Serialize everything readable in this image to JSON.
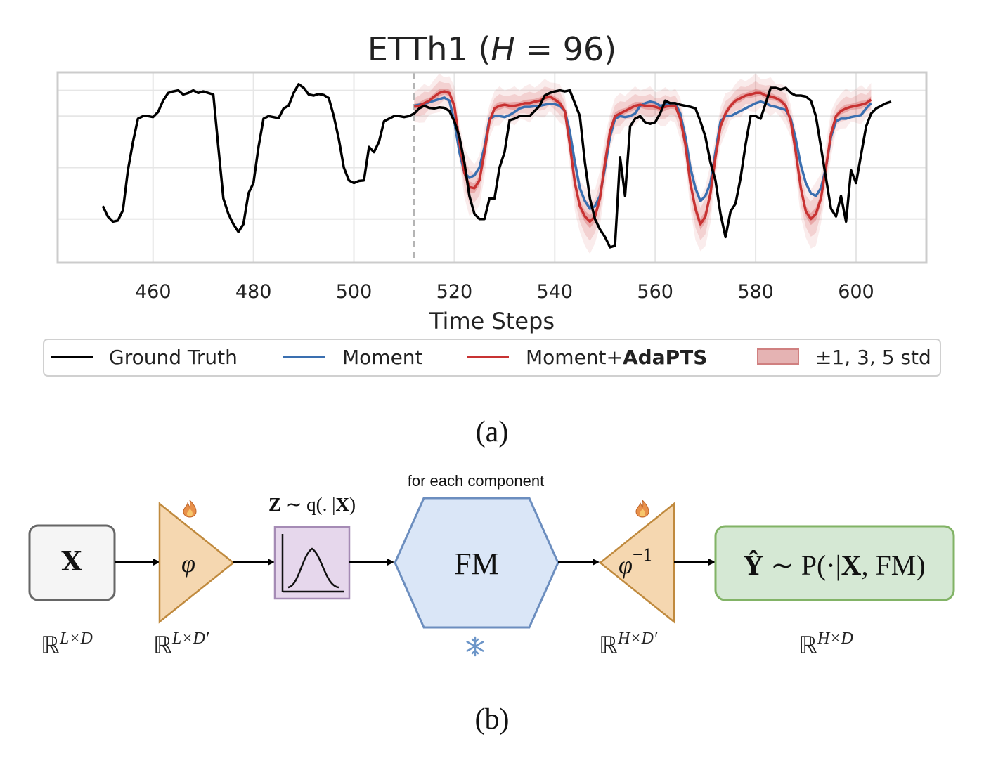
{
  "panel_a": {
    "label": "(a)",
    "chart_data": {
      "type": "line",
      "title_prefix": "ETTh1 (",
      "title_var": "H",
      "title_suffix": " = 96)",
      "xlabel": "Time Steps",
      "ylabel": "",
      "xlim": [
        441,
        614
      ],
      "ylim": [
        -1.85,
        1.85
      ],
      "xticks": [
        460,
        480,
        500,
        520,
        540,
        560,
        580,
        600
      ],
      "grid": true,
      "legend_position": "bottom",
      "forecast_start": 512,
      "legend": {
        "ground_truth": "Ground Truth",
        "moment": "Moment",
        "adapts_prefix": "Moment+",
        "adapts_bold": "AdaPTS",
        "band": "±1, 3, 5 std"
      },
      "colors": {
        "ground_truth": "#000000",
        "moment": "#3a6fb0",
        "adapts": "#c83232",
        "band": "#d24646",
        "grid": "#e6e6e6",
        "frame": "#cccccc",
        "divider": "#b4b4b4"
      },
      "series": {
        "ground_truth": {
          "x_start": 450,
          "values": [
            -0.75,
            -0.95,
            -1.05,
            -1.03,
            -0.83,
            -0.05,
            0.5,
            0.95,
            1.0,
            1.0,
            0.98,
            1.08,
            1.3,
            1.45,
            1.48,
            1.5,
            1.42,
            1.45,
            1.5,
            1.45,
            1.48,
            1.45,
            1.42,
            0.4,
            -0.6,
            -0.9,
            -1.1,
            -1.25,
            -1.1,
            -0.5,
            -0.3,
            0.4,
            0.95,
            1.0,
            0.98,
            0.96,
            1.15,
            1.2,
            1.45,
            1.62,
            1.55,
            1.42,
            1.4,
            1.43,
            1.41,
            1.35,
            1.0,
            0.55,
            0.0,
            -0.25,
            -0.3,
            -0.26,
            -0.25,
            0.4,
            0.3,
            0.5,
            0.9,
            0.95,
            1.0,
            1.0,
            0.98,
            1.0,
            1.05,
            1.15,
            1.2,
            1.16,
            1.15,
            1.17,
            1.16,
            1.1,
            0.9,
            0.6,
            0.1,
            -0.55,
            -0.9,
            -1.0,
            -1.0,
            -0.6,
            -0.6,
            0.0,
            0.3,
            0.92,
            0.95,
            1.0,
            1.0,
            1.0,
            1.1,
            1.2,
            1.4,
            1.45,
            1.48,
            1.5,
            1.48,
            1.5,
            1.25,
            1.0,
            0.1,
            -0.6,
            -1.0,
            -1.2,
            -1.35,
            -1.55,
            -1.52,
            0.2,
            -0.55,
            0.8,
            0.95,
            1.0,
            0.88,
            0.85,
            0.88,
            1.05,
            1.3,
            1.25,
            1.25,
            1.22,
            1.2,
            1.18,
            1.15,
            0.9,
            0.6,
            0.1,
            -0.25,
            -0.9,
            -1.35,
            -0.85,
            -0.7,
            -0.2,
            0.45,
            1.0,
            1.0,
            0.95,
            1.25,
            1.55,
            1.55,
            1.52,
            1.55,
            1.45,
            1.4,
            1.4,
            1.38,
            1.3,
            1.0,
            0.4,
            -0.2,
            -0.8,
            -0.95,
            -0.55,
            -1.05,
            -0.05,
            -0.3,
            0.25,
            0.8,
            1.05,
            1.15,
            1.2,
            1.25,
            1.28
          ],
          "name": "Ground Truth"
        },
        "moment": {
          "x_start": 512,
          "values": [
            1.2,
            1.22,
            1.24,
            1.27,
            1.3,
            1.33,
            1.36,
            1.3,
            0.9,
            0.3,
            -0.1,
            -0.2,
            -0.15,
            0.0,
            0.4,
            0.95,
            1.0,
            1.0,
            0.98,
            1.02,
            1.08,
            1.15,
            1.18,
            1.18,
            1.19,
            1.2,
            1.22,
            1.24,
            1.23,
            1.2,
            1.1,
            0.7,
            0.1,
            -0.4,
            -0.65,
            -0.8,
            -0.75,
            -0.55,
            0.0,
            0.6,
            0.95,
            1.0,
            0.98,
            1.0,
            1.05,
            1.2,
            1.25,
            1.28,
            1.26,
            1.2,
            1.22,
            1.25,
            1.25,
            1.05,
            0.6,
            0.0,
            -0.4,
            -0.65,
            -0.55,
            -0.3,
            0.3,
            0.9,
            1.0,
            1.0,
            1.05,
            1.1,
            1.15,
            1.2,
            1.25,
            1.28,
            1.25,
            1.2,
            1.18,
            1.15,
            1.12,
            0.95,
            0.55,
            0.05,
            -0.3,
            -0.5,
            -0.55,
            -0.4,
            0.0,
            0.6,
            0.9,
            0.95,
            0.95,
            0.98,
            1.0,
            1.02,
            1.15,
            1.25
          ],
          "name": "Moment"
        },
        "adapts": {
          "x_start": 512,
          "values": [
            1.18,
            1.2,
            1.25,
            1.3,
            1.38,
            1.45,
            1.48,
            1.45,
            1.2,
            0.5,
            -0.1,
            -0.38,
            -0.4,
            -0.25,
            0.3,
            0.9,
            1.15,
            1.2,
            1.22,
            1.2,
            1.2,
            1.22,
            1.25,
            1.25,
            1.28,
            1.3,
            1.35,
            1.38,
            1.32,
            1.25,
            1.1,
            0.45,
            -0.3,
            -0.75,
            -0.95,
            -1.05,
            -0.95,
            -0.6,
            0.1,
            0.7,
            1.0,
            1.05,
            1.1,
            1.15,
            1.2,
            1.22,
            1.2,
            1.2,
            1.18,
            1.15,
            1.18,
            1.2,
            1.2,
            0.95,
            0.45,
            -0.3,
            -0.8,
            -1.1,
            -0.95,
            -0.5,
            0.2,
            0.8,
            1.05,
            1.2,
            1.3,
            1.35,
            1.4,
            1.42,
            1.45,
            1.45,
            1.4,
            1.38,
            1.35,
            1.3,
            1.2,
            0.9,
            0.3,
            -0.4,
            -0.85,
            -1.0,
            -0.9,
            -0.6,
            0.0,
            0.65,
            1.0,
            1.1,
            1.15,
            1.18,
            1.2,
            1.22,
            1.25,
            1.32
          ],
          "name": "Moment+AdaPTS"
        }
      }
    }
  },
  "panel_b": {
    "label": "(b)",
    "component_note": "for each component",
    "input_box": {
      "symbol": "X",
      "dim_base": "ℝ",
      "dim_sup": "L×D"
    },
    "encoder": {
      "symbol": "φ",
      "dim_base": "ℝ",
      "dim_sup": "L×D′"
    },
    "latent": {
      "caption_bold": "Z",
      "caption_rest": " ∼ q(. |",
      "caption_bold2": "X",
      "caption_end": ")"
    },
    "fm": {
      "label": "FM"
    },
    "decoder": {
      "symbol": "φ",
      "sup": "−1",
      "dim_base": "ℝ",
      "dim_sup": "H×D′"
    },
    "output_box": {
      "lhs": "Ŷ",
      "rest": " ∼ P(·|",
      "bold": "X",
      "end": ", FM)",
      "dim_base": "ℝ",
      "dim_sup": "H×D"
    },
    "colors": {
      "input_fill": "#f5f5f5",
      "input_stroke": "#666666",
      "tri_fill": "#f5d7b0",
      "tri_stroke": "#c08a3e",
      "latent_fill": "#e6d7ec",
      "latent_stroke": "#a58bb5",
      "fm_fill": "#dae6f7",
      "fm_stroke": "#6c8ebf",
      "out_fill": "#d5e8d4",
      "out_stroke": "#82b366",
      "flame": "#e8904a",
      "snow": "#6c95c8"
    }
  }
}
